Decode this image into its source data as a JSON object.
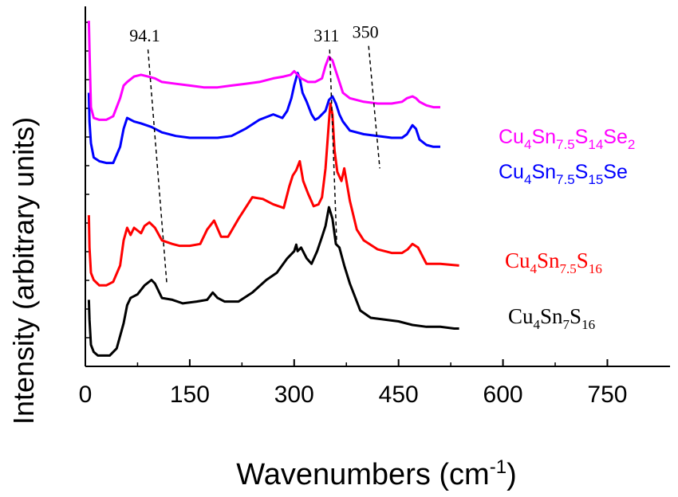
{
  "chart_data": {
    "type": "line",
    "title": "",
    "xlabel": "Wavenumbers (cm",
    "xlabel_sup": "-1",
    "xlabel_close": ")",
    "ylabel": "Intensity (arbitrary units)",
    "xlim": [
      0,
      840
    ],
    "ylim": [
      0,
      100
    ],
    "x_ticks": [
      0,
      150,
      300,
      450,
      600,
      750
    ],
    "x_tick_labels": [
      "0",
      "150",
      "300",
      "450",
      "600",
      "750"
    ],
    "series": [
      {
        "name": "Cu4Sn7S16",
        "label_parts": [
          [
            "Cu",
            "n"
          ],
          [
            "4",
            "sub"
          ],
          [
            "Sn",
            "n"
          ],
          [
            "7",
            "sub"
          ],
          [
            "S",
            "n"
          ],
          [
            "16",
            "sub"
          ]
        ],
        "label_style": "serif",
        "color": "#000000",
        "x": [
          5,
          6,
          8,
          12,
          18,
          25,
          35,
          45,
          55,
          60,
          65,
          75,
          85,
          95,
          100,
          110,
          125,
          140,
          160,
          175,
          183,
          190,
          200,
          220,
          240,
          260,
          275,
          290,
          300,
          303,
          305,
          310,
          318,
          325,
          333,
          340,
          345,
          350,
          355,
          360,
          365,
          372,
          380,
          395,
          410,
          430,
          450,
          470,
          490,
          510,
          530,
          537
        ],
        "y": [
          18.5,
          13,
          6,
          4,
          3,
          3,
          3,
          5,
          12,
          17,
          19,
          20,
          22.5,
          24,
          23,
          19,
          18.5,
          17.5,
          18,
          18.5,
          20.5,
          19,
          18,
          18,
          20.5,
          24,
          26,
          30,
          32,
          33.8,
          32,
          33,
          30,
          28.5,
          32,
          36,
          39,
          44.2,
          41,
          34,
          33,
          28,
          23,
          15.5,
          13.5,
          13,
          12.5,
          11.5,
          11,
          11,
          10.5,
          10.5
        ]
      },
      {
        "name": "Cu4Sn7.5S16",
        "label_parts": [
          [
            "Cu",
            "n"
          ],
          [
            "4",
            "sub"
          ],
          [
            "Sn",
            "n"
          ],
          [
            "7.5",
            "sub"
          ],
          [
            "S",
            "n"
          ],
          [
            "16",
            "sub"
          ]
        ],
        "label_style": "serif",
        "color": "#ff0000",
        "x": [
          5,
          6,
          8,
          12,
          20,
          30,
          40,
          50,
          55,
          60,
          65,
          70,
          80,
          85,
          92,
          100,
          110,
          125,
          135,
          150,
          165,
          175,
          185,
          195,
          205,
          220,
          240,
          255,
          270,
          285,
          293,
          298,
          303,
          308,
          313,
          320,
          328,
          335,
          340,
          345,
          350,
          352,
          355,
          358,
          362,
          368,
          372,
          380,
          390,
          400,
          420,
          440,
          455,
          463,
          470,
          478,
          490,
          510,
          537
        ],
        "y": [
          42,
          33,
          26,
          24,
          22.5,
          22.5,
          23.5,
          28,
          35,
          38.5,
          36.5,
          38.5,
          37,
          39,
          40,
          38.5,
          35,
          34,
          33.5,
          33.5,
          34,
          38,
          40.5,
          36,
          36,
          41,
          47,
          46.5,
          45,
          44,
          50,
          53,
          54.5,
          57,
          51.5,
          48,
          44.5,
          45,
          47,
          55,
          68,
          73,
          70,
          60,
          54,
          51.5,
          55,
          46,
          38,
          35,
          32.5,
          31.5,
          31.5,
          32.5,
          34,
          33,
          28.5,
          28.5,
          28
        ]
      },
      {
        "name": "Cu4Sn7.5S15Se",
        "label_parts": [
          [
            "Cu",
            "n"
          ],
          [
            "4",
            "sub"
          ],
          [
            "Sn",
            "n"
          ],
          [
            "7.5",
            "sub"
          ],
          [
            "S",
            "n"
          ],
          [
            "15",
            "sub"
          ],
          [
            "Se",
            "n"
          ]
        ],
        "label_style": "sans",
        "color": "#0000ff",
        "x": [
          5,
          6,
          8,
          12,
          20,
          30,
          40,
          50,
          55,
          60,
          70,
          80,
          95,
          110,
          130,
          150,
          170,
          190,
          210,
          230,
          250,
          270,
          283,
          290,
          296,
          300,
          305,
          308,
          312,
          318,
          325,
          330,
          335,
          340,
          345,
          350,
          355,
          360,
          365,
          370,
          380,
          400,
          420,
          440,
          455,
          462,
          470,
          475,
          480,
          490,
          500,
          510
        ],
        "y": [
          76,
          68,
          62,
          58,
          57,
          56.5,
          56.5,
          61,
          66,
          69,
          68,
          67.5,
          66.5,
          65,
          64,
          63.5,
          63.5,
          63.5,
          64,
          66,
          68.5,
          70,
          69,
          71,
          74.5,
          78,
          81.5,
          80,
          76,
          73.5,
          70,
          68.5,
          69,
          70,
          71,
          74,
          75,
          73,
          70,
          68,
          65.5,
          64.5,
          64,
          63.5,
          63.5,
          64.5,
          67,
          66,
          63,
          61.5,
          61,
          61
        ]
      },
      {
        "name": "Cu4Sn7.5S14Se2",
        "label_parts": [
          [
            "Cu",
            "n"
          ],
          [
            "4",
            "sub"
          ],
          [
            "Sn",
            "n"
          ],
          [
            "7.5",
            "sub"
          ],
          [
            "S",
            "n"
          ],
          [
            "14",
            "sub"
          ],
          [
            "Se",
            "n"
          ],
          [
            "2",
            "sub"
          ]
        ],
        "label_style": "sans",
        "color": "#ff00ff",
        "x": [
          5,
          6,
          8,
          12,
          20,
          30,
          40,
          50,
          55,
          60,
          70,
          80,
          90,
          100,
          110,
          130,
          150,
          170,
          190,
          210,
          230,
          250,
          270,
          285,
          295,
          300,
          305,
          310,
          320,
          330,
          340,
          345,
          350,
          355,
          360,
          365,
          370,
          380,
          400,
          420,
          440,
          455,
          462,
          470,
          475,
          480,
          490,
          500,
          510
        ],
        "y": [
          96,
          88,
          72,
          69,
          68.5,
          68.5,
          69.5,
          74.5,
          78,
          79,
          80.5,
          81,
          80.5,
          80,
          79,
          78.5,
          78,
          77.5,
          77.5,
          78,
          78.5,
          79,
          80,
          80.5,
          81,
          82,
          81,
          80,
          79,
          79,
          80,
          83.5,
          86,
          85,
          82,
          79,
          76,
          74.5,
          73.5,
          73,
          73,
          73.5,
          74.5,
          75,
          74.5,
          73.5,
          72.5,
          72,
          72
        ]
      }
    ],
    "peak_annotations": [
      {
        "label": "94.1",
        "x_top": 90,
        "y_top": 88,
        "x_bottom": 117,
        "y_bottom": 23
      },
      {
        "label": "311",
        "x_top": 351,
        "y_top": 88,
        "x_bottom": 361,
        "y_bottom": 35
      },
      {
        "label": "350",
        "x_top": 407,
        "y_top": 89,
        "x_bottom": 423,
        "y_bottom": 55
      }
    ]
  }
}
